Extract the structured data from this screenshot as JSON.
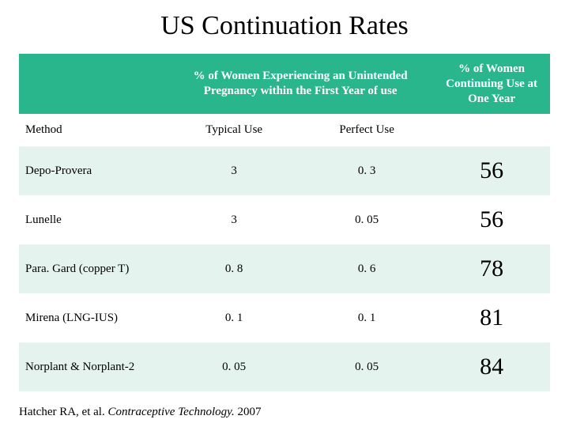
{
  "title": "US Continuation Rates",
  "colors": {
    "header_bg": "#2ab68d",
    "header_text": "#ffffff",
    "band_a": "#e5f3ee",
    "band_b": "#ffffff",
    "page_bg": "#ffffff",
    "text": "#000000"
  },
  "typography": {
    "title_fontsize_pt": 26,
    "header_fontsize_pt": 11,
    "body_fontsize_pt": 11,
    "continuation_fontsize_pt": 22,
    "title_font": "Times New Roman",
    "body_font": "Georgia"
  },
  "table": {
    "type": "table",
    "column_widths_pct": [
      28,
      25,
      25,
      22
    ],
    "header_group_1": "% of Women Experiencing an Unintended Pregnancy within the First Year of use",
    "header_group_2": "% of Women Continuing Use at One Year",
    "subheaders": {
      "method": "Method",
      "typical": "Typical Use",
      "perfect": "Perfect Use",
      "continuation": ""
    },
    "rows": [
      {
        "method": "Depo-Provera",
        "typical": "3",
        "perfect": "0. 3",
        "continuation": "56"
      },
      {
        "method": "Lunelle",
        "typical": "3",
        "perfect": "0. 05",
        "continuation": "56"
      },
      {
        "method": "Para. Gard (copper T)",
        "typical": "0. 8",
        "perfect": "0. 6",
        "continuation": "78"
      },
      {
        "method": "Mirena (LNG-IUS)",
        "typical": "0. 1",
        "perfect": "0. 1",
        "continuation": "81"
      },
      {
        "method": "Norplant & Norplant-2",
        "typical": "0. 05",
        "perfect": "0. 05",
        "continuation": "84"
      }
    ]
  },
  "citation": {
    "prefix": "Hatcher RA, et al. ",
    "italic": "Contraceptive Technology. ",
    "suffix": "2007"
  }
}
